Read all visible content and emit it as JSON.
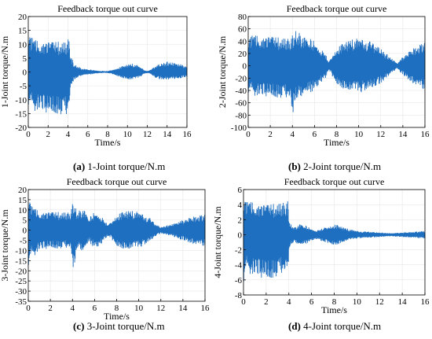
{
  "colors": {
    "signal": "#1f6fc0",
    "axis": "#000000",
    "grid": "#e6e6e6"
  },
  "panels": [
    {
      "caption_letter": "(a)",
      "caption_text": "1-Joint torque/N.m"
    },
    {
      "caption_letter": "(b)",
      "caption_text": "2-Joint torque/N.m"
    },
    {
      "caption_letter": "(c)",
      "caption_text": "3-Joint torque/N.m"
    },
    {
      "caption_letter": "(d)",
      "caption_text": "4-Joint torque/N.m"
    }
  ],
  "chart_data": [
    {
      "type": "area",
      "title": "Feedback torque out curve",
      "xlabel": "Time/s",
      "ylabel": "1-Joint torque/N.m",
      "xlim": [
        0,
        16
      ],
      "ylim": [
        -20,
        20
      ],
      "xticks": [
        0,
        2,
        4,
        6,
        8,
        10,
        12,
        14,
        16
      ],
      "yticks": [
        -20,
        -15,
        -10,
        -5,
        0,
        5,
        10,
        15,
        20
      ],
      "grid": true,
      "series": [
        {
          "x": [
            0,
            0.2,
            0.5,
            1,
            2,
            3,
            3.9,
            4.1,
            4.3,
            4.6,
            5,
            5.5,
            6,
            7,
            7.8,
            8.2,
            9,
            10,
            10.5,
            11,
            11.8,
            12.2,
            13,
            14,
            15,
            16
          ],
          "upper": [
            18,
            14,
            12,
            11,
            11,
            11,
            11,
            13,
            6,
            3,
            2,
            1.2,
            1,
            0.5,
            0.3,
            0.5,
            1.5,
            2.8,
            3.0,
            2.5,
            0.5,
            0.5,
            2.5,
            3.8,
            3.2,
            2.0
          ],
          "lower": [
            -12,
            -13,
            -14,
            -14,
            -15,
            -15,
            -16,
            -13,
            -6,
            -3,
            -2,
            -1.2,
            -1,
            -0.5,
            -0.3,
            -0.5,
            -1.5,
            -2.8,
            -3.0,
            -2.5,
            -0.5,
            -0.5,
            -2.5,
            -2.8,
            -2.5,
            -1.8
          ]
        }
      ]
    },
    {
      "type": "area",
      "title": "Feedback torque out curve",
      "xlabel": "Time/s",
      "ylabel": "2-Joint torque/N.m",
      "xlim": [
        0,
        16
      ],
      "ylim": [
        -100,
        80
      ],
      "xticks": [
        0,
        2,
        4,
        6,
        8,
        10,
        12,
        14,
        16
      ],
      "yticks": [
        -100,
        -80,
        -60,
        -40,
        -20,
        0,
        20,
        40,
        60,
        80
      ],
      "grid": true,
      "series": [
        {
          "x": [
            0,
            0.5,
            1,
            2,
            3,
            3.8,
            4.0,
            4.2,
            4.5,
            5,
            6,
            7,
            7.3,
            7.6,
            8,
            9,
            10,
            11,
            12,
            13,
            13.5,
            14,
            15,
            16
          ],
          "upper": [
            52,
            50,
            48,
            48,
            46,
            45,
            50,
            58,
            55,
            50,
            40,
            20,
            6,
            18,
            30,
            42,
            45,
            40,
            28,
            12,
            4,
            15,
            30,
            40
          ],
          "lower": [
            -45,
            -48,
            -50,
            -50,
            -52,
            -55,
            -92,
            -60,
            -55,
            -50,
            -40,
            -20,
            -6,
            -18,
            -30,
            -42,
            -45,
            -40,
            -28,
            -12,
            -4,
            -15,
            -30,
            -40
          ]
        }
      ]
    },
    {
      "type": "area",
      "title": "Feedback torque out curve",
      "xlabel": "Time/s",
      "ylabel": "3-Joint torque/N.m",
      "xlim": [
        0,
        16
      ],
      "ylim": [
        -35,
        20
      ],
      "xticks": [
        0,
        2,
        4,
        6,
        8,
        10,
        12,
        14,
        16
      ],
      "yticks": [
        -35,
        -30,
        -25,
        -20,
        -15,
        -10,
        -5,
        0,
        5,
        10,
        15,
        20
      ],
      "grid": true,
      "series": [
        {
          "x": [
            0,
            0.3,
            1,
            2,
            3,
            3.8,
            4.1,
            4.4,
            5,
            5.5,
            6,
            6.5,
            7,
            7.3,
            8,
            9,
            10,
            11,
            11.5,
            12,
            13,
            14,
            15,
            16
          ],
          "upper": [
            20,
            12,
            9,
            9,
            9,
            9,
            15,
            9,
            11,
            6,
            9,
            8,
            4,
            3,
            8,
            10,
            9,
            6,
            3,
            1.5,
            3,
            5,
            7,
            8
          ],
          "lower": [
            -18,
            -14,
            -10,
            -9,
            -9,
            -9,
            -21,
            -9,
            -11,
            -6,
            -9,
            -8,
            -4,
            -3,
            -8,
            -10,
            -9,
            -6,
            -3,
            -1.5,
            -3,
            -5,
            -7,
            -8
          ]
        }
      ]
    },
    {
      "type": "area",
      "title": "Feedback torque out curve",
      "xlabel": "Time/s",
      "ylabel": "4-Joint torque/N.m",
      "xlim": [
        0,
        16
      ],
      "ylim": [
        -8,
        6
      ],
      "xticks": [
        0,
        2,
        4,
        6,
        8,
        10,
        12,
        14,
        16
      ],
      "yticks": [
        -8,
        -6,
        -4,
        -2,
        0,
        2,
        4,
        6
      ],
      "grid": true,
      "series": [
        {
          "x": [
            0,
            0.3,
            1,
            2,
            3,
            3.9,
            4.1,
            4.5,
            5,
            5.5,
            6,
            6.5,
            7,
            7.5,
            8,
            8.5,
            9,
            10,
            11,
            12,
            13,
            14,
            15,
            16
          ],
          "upper": [
            5.8,
            4.5,
            4.2,
            4.0,
            4.2,
            4.5,
            1.5,
            1.0,
            1.5,
            1.2,
            0.8,
            0.6,
            0.9,
            1.2,
            1.4,
            1.2,
            0.9,
            0.5,
            0.4,
            0.3,
            0.2,
            0.3,
            0.4,
            0.5
          ],
          "lower": [
            -6.5,
            -5.0,
            -5.5,
            -6.0,
            -5.5,
            -5.0,
            -1.5,
            -1.0,
            -1.5,
            -1.2,
            -0.8,
            -0.6,
            -0.9,
            -1.2,
            -1.4,
            -1.2,
            -0.9,
            -0.5,
            -0.4,
            -0.3,
            -0.2,
            -0.3,
            -0.4,
            -0.5
          ]
        }
      ]
    }
  ]
}
